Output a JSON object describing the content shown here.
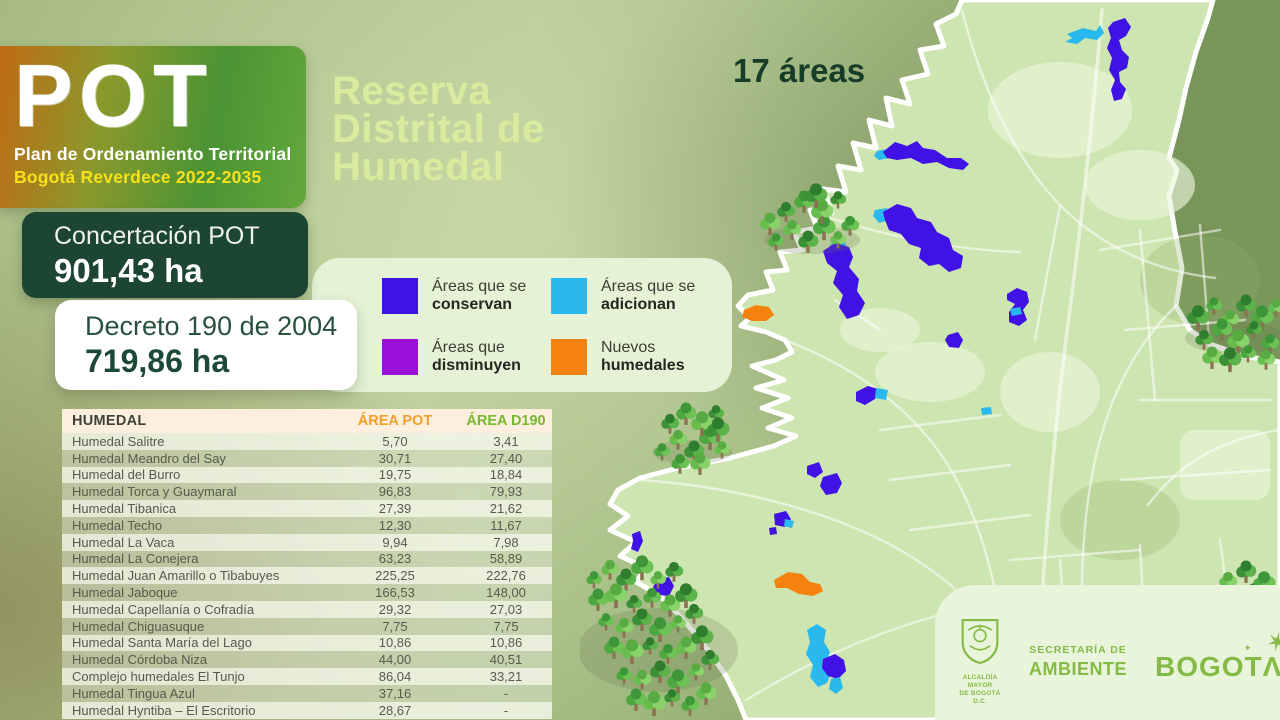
{
  "logo": {
    "acronym": "POT",
    "subtitle": "Plan de Ordenamiento Territorial",
    "tagline": "Bogotá Reverdece 2022-2035"
  },
  "title": {
    "lines": [
      "Reserva",
      "Distrital de",
      "Humedal"
    ]
  },
  "areas_badge": "17 áreas",
  "stats": {
    "concertacion": {
      "label": "Concertación POT",
      "value": "901,43 ha"
    },
    "decreto": {
      "label": "Decreto 190 de 2004",
      "value": "719,86 ha"
    }
  },
  "legend": {
    "items": [
      {
        "line1": "Áreas que se",
        "line2": "conservan",
        "color": "#4012e6"
      },
      {
        "line1": "Áreas que se",
        "line2": "adicionan",
        "color": "#29b9ee"
      },
      {
        "line1": "Áreas que",
        "line2": "disminuyen",
        "color": "#9b10d8"
      },
      {
        "line1": "Nuevos",
        "line2": "humedales",
        "color": "#f5820f"
      }
    ]
  },
  "table": {
    "headers": [
      "HUMEDAL",
      "ÁREA POT",
      "ÁREA D190"
    ],
    "rows": [
      {
        "name": "Humedal Salitre",
        "pot": "5,70",
        "d190": "3,41"
      },
      {
        "name": "Humedal Meandro del Say",
        "pot": "30,71",
        "d190": "27,40"
      },
      {
        "name": "Humedal del Burro",
        "pot": "19,75",
        "d190": "18,84"
      },
      {
        "name": "Humedal Torca y Guaymaral",
        "pot": "96,83",
        "d190": "79,93"
      },
      {
        "name": "Humedal Tibanica",
        "pot": "27,39",
        "d190": "21,62"
      },
      {
        "name": "Humedal Techo",
        "pot": "12,30",
        "d190": "11,67"
      },
      {
        "name": "Humedal La Vaca",
        "pot": "9,94",
        "d190": "7,98"
      },
      {
        "name": "Humedal La Conejera",
        "pot": "63,23",
        "d190": "58,89"
      },
      {
        "name": "Humedal Juan Amarillo o Tibabuyes",
        "pot": "225,25",
        "d190": "222,76"
      },
      {
        "name": "Humedal Jaboque",
        "pot": "166,53",
        "d190": "148,00"
      },
      {
        "name": "Humedal Capellanía o Cofradía",
        "pot": "29,32",
        "d190": "27,03"
      },
      {
        "name": "Humedal Chiguasuque",
        "pot": "7,75",
        "d190": "7,75"
      },
      {
        "name": "Humedal Santa María del Lago",
        "pot": "10,86",
        "d190": "10,86"
      },
      {
        "name": "Humedal Córdoba Niza",
        "pot": "44,00",
        "d190": "40,51"
      },
      {
        "name": "Complejo humedales El Tunjo",
        "pot": "86,04",
        "d190": "33,21"
      },
      {
        "name": "Humedal Tingua Azul",
        "pot": "37,16",
        "d190": "-"
      },
      {
        "name": "Humedal Hyntiba – El Escritorio",
        "pot": "28,67",
        "d190": "-"
      }
    ]
  },
  "footer": {
    "alcaldia_line1": "ALCALDÍA MAYOR",
    "alcaldia_line2": "DE BOGOTÁ D.C.",
    "secretaria_line1": "SECRETARÍA DE",
    "secretaria_line2": "AMBIENTE",
    "bogota_word": "BOGOT",
    "bogota_a": "Λ",
    "star_glyph": "✶",
    "spark_glyph": "✦"
  },
  "chart_data": {
    "type": "table",
    "title": "Reserva Distrital de Humedal",
    "total_areas": 17,
    "concertacion_pot_ha": "901,43",
    "decreto_190_2004_ha": "719,86",
    "columns": [
      "HUMEDAL",
      "ÁREA POT",
      "ÁREA D190"
    ],
    "rows": [
      [
        "Humedal Salitre",
        "5,70",
        "3,41"
      ],
      [
        "Humedal Meandro del Say",
        "30,71",
        "27,40"
      ],
      [
        "Humedal del Burro",
        "19,75",
        "18,84"
      ],
      [
        "Humedal Torca y Guaymaral",
        "96,83",
        "79,93"
      ],
      [
        "Humedal Tibanica",
        "27,39",
        "21,62"
      ],
      [
        "Humedal Techo",
        "12,30",
        "11,67"
      ],
      [
        "Humedal La Vaca",
        "9,94",
        "7,98"
      ],
      [
        "Humedal La Conejera",
        "63,23",
        "58,89"
      ],
      [
        "Humedal Juan Amarillo o Tibabuyes",
        "225,25",
        "222,76"
      ],
      [
        "Humedal Jaboque",
        "166,53",
        "148,00"
      ],
      [
        "Humedal Capellanía o Cofradía",
        "29,32",
        "27,03"
      ],
      [
        "Humedal Chiguasuque",
        "7,75",
        "7,75"
      ],
      [
        "Humedal Santa María del Lago",
        "10,86",
        "10,86"
      ],
      [
        "Humedal Córdoba Niza",
        "44,00",
        "40,51"
      ],
      [
        "Complejo humedales El Tunjo",
        "86,04",
        "33,21"
      ],
      [
        "Humedal Tingua Azul",
        "37,16",
        "-"
      ],
      [
        "Humedal Hyntiba – El Escritorio",
        "28,67",
        "-"
      ]
    ]
  }
}
